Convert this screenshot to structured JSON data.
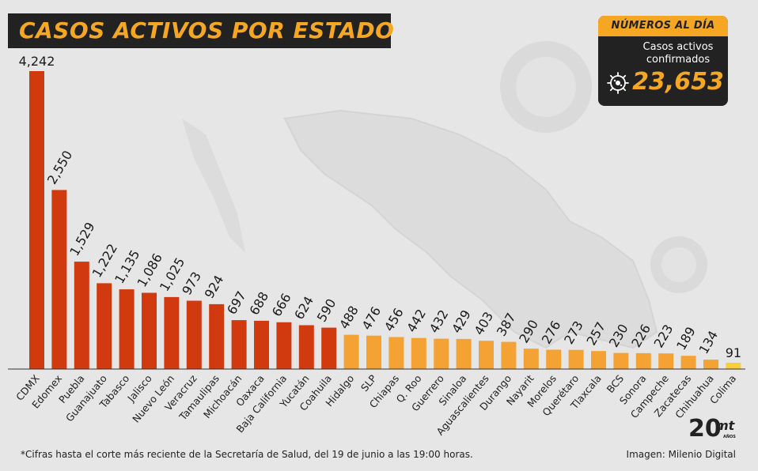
{
  "header": {
    "title": "CASOS ACTIVOS POR ESTADO"
  },
  "summary": {
    "heading": "NÚMEROS AL DÍA",
    "label_line1": "Casos activos",
    "label_line2": "confirmados",
    "value": "23,653",
    "icon": "virus-icon"
  },
  "footer": {
    "note": "*Cifras hasta el corte más reciente de la Secretaría de Salud, del 19 de junio a las 19:00 horas.",
    "credit": "Imagen: Milenio Digital",
    "logo_text": "mt",
    "logo_number": "20",
    "logo_sub": "AÑOS"
  },
  "colors": {
    "background": "#e6e6e6",
    "dark": "#222222",
    "accent": "#f5a623",
    "bar_high": "#d13a0e",
    "bar_mid": "#f4a233",
    "bar_low": "#f7cf3b"
  },
  "chart_data": {
    "type": "bar",
    "title": "CASOS ACTIVOS POR ESTADO",
    "xlabel": "",
    "ylabel": "",
    "ylim": [
      0,
      4242
    ],
    "grid": false,
    "legend": "none",
    "categories": [
      "CDMX",
      "Edomex",
      "Puebla",
      "Guanajuato",
      "Tabasco",
      "Jalisco",
      "Nuevo León",
      "Veracruz",
      "Tamaulipas",
      "Michoacán",
      "Oaxaca",
      "Baja California",
      "Yucatán",
      "Coahuila",
      "Hidalgo",
      "SLP",
      "Chiapas",
      "Q. Roo",
      "Guerrero",
      "Sinaloa",
      "Aguascalientes",
      "Durango",
      "Nayarit",
      "Morelos",
      "Querétaro",
      "Tlaxcala",
      "BCS",
      "Sonora",
      "Campeche",
      "Zacatecas",
      "Chihuahua",
      "Colima"
    ],
    "values": [
      4242,
      2550,
      1529,
      1222,
      1135,
      1086,
      1025,
      973,
      924,
      697,
      688,
      666,
      624,
      590,
      488,
      476,
      456,
      442,
      432,
      429,
      403,
      387,
      290,
      276,
      273,
      257,
      230,
      226,
      223,
      189,
      134,
      91
    ],
    "value_labels": [
      "4,242",
      "2,550",
      "1,529",
      "1,222",
      "1,135",
      "1,086",
      "1,025",
      "973",
      "924",
      "697",
      "688",
      "666",
      "624",
      "590",
      "488",
      "476",
      "456",
      "442",
      "432",
      "429",
      "403",
      "387",
      "290",
      "276",
      "273",
      "257",
      "230",
      "226",
      "223",
      "189",
      "134",
      "91"
    ],
    "bar_colors": [
      "#d13a0e",
      "#d13a0e",
      "#d13a0e",
      "#d13a0e",
      "#d13a0e",
      "#d13a0e",
      "#d13a0e",
      "#d13a0e",
      "#d13a0e",
      "#d13a0e",
      "#d13a0e",
      "#d13a0e",
      "#d13a0e",
      "#d13a0e",
      "#f4a233",
      "#f4a233",
      "#f4a233",
      "#f4a233",
      "#f4a233",
      "#f4a233",
      "#f4a233",
      "#f4a233",
      "#f4a233",
      "#f4a233",
      "#f4a233",
      "#f4a233",
      "#f4a233",
      "#f4a233",
      "#f4a233",
      "#f4a233",
      "#f4a233",
      "#f7cf3b"
    ]
  }
}
